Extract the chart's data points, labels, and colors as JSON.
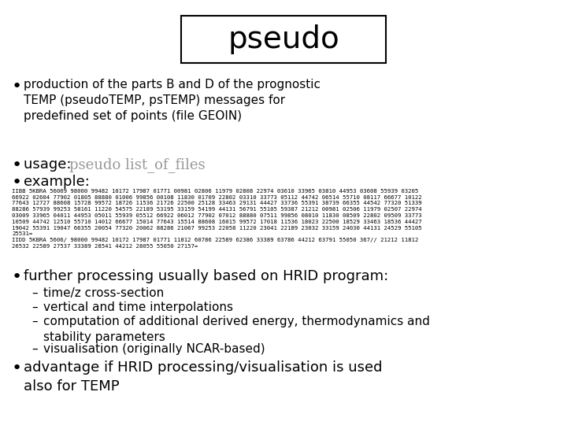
{
  "title": "pseudo",
  "bg_color": "#ffffff",
  "title_box_color": "#ffffff",
  "title_border_color": "#000000",
  "bullet1": "production of the parts B and D of the prognostic\nTEMP (pseudoTEMP, psTEMP) messages for\npredefined set of points (file GEOIN)",
  "bullet2_label": "usage: ",
  "bullet2_code": "pseudo list_of_files",
  "bullet3_label": "example:",
  "code_block1": "IIBB 5KBRA 56069 98000 99482 10172 17987 01771 00981 02806 11979 02808 22974 03610 33965 03810 44953 03608 55939 03205\n66922 02604 77902 01805 88880 01006 99856 00108 11830 01709 22802 03310 33773 05112 44742 06514 55710 08117 66677 10122\n77643 12727 88608 15728 99572 18726 11536 21726 22500 25128 33463 29131 44427 33736 55391 38739 66355 44542 77320 51339\n88286 57939 99253 58161 11220 54575 22189 53195 33159 54199 44131 56791 55105 59387 21212 00981 02506 11979 02507 22974\n03009 33965 04011 44953 05011 55939 05512 66922 06012 77902 07012 88880 07511 99856 08010 11830 08509 22802 09509 33773\n10509 44742 12510 55710 14012 66677 15014 77643 15514 88608 16015 99572 17018 11536 18023 22500 18529 33463 18536 44427\n19042 55391 19047 66355 20054 77320 20062 88286 21067 99253 22058 11220 23041 22189 23032 33159 24030 44131 24529 55105\n25531=\nIIDD 5KBRA 5606/ 98000 99482 10172 17987 01771 11812 60786 22589 62386 33389 63786 44212 63791 55050 367// 21212 11812\n26532 22589 27537 33389 28541 44212 28055 55050 27157=",
  "bullet4": "further processing usually based on HRID program:",
  "sub1": "time/z cross-section",
  "sub2": "vertical and time interpolations",
  "sub3": "computation of additional derived energy, thermodynamics and\nstability parameters",
  "sub4": "visualisation (originally NCAR-based)",
  "bullet5": "advantage if HRID processing/visualisation is used\nalso for TEMP",
  "usage_color": "#999999",
  "code_color": "#000000",
  "text_color": "#000000"
}
